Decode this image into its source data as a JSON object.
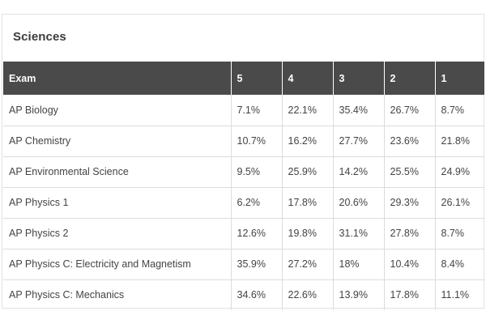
{
  "card": {
    "title": "Sciences"
  },
  "table": {
    "headers": [
      "Exam",
      "5",
      "4",
      "3",
      "2",
      "1"
    ],
    "rows": [
      [
        "AP Biology",
        "7.1%",
        "22.1%",
        "35.4%",
        "26.7%",
        "8.7%"
      ],
      [
        "AP Chemistry",
        "10.7%",
        "16.2%",
        "27.7%",
        "23.6%",
        "21.8%"
      ],
      [
        "AP Environmental Science",
        "9.5%",
        "25.9%",
        "14.2%",
        "25.5%",
        "24.9%"
      ],
      [
        "AP Physics 1",
        "6.2%",
        "17.8%",
        "20.6%",
        "29.3%",
        "26.1%"
      ],
      [
        "AP Physics 2",
        "12.6%",
        "19.8%",
        "31.1%",
        "27.8%",
        "8.7%"
      ],
      [
        "AP Physics C: Electricity and Magnetism",
        "35.9%",
        "27.2%",
        "18%",
        "10.4%",
        "8.4%"
      ],
      [
        "AP Physics C: Mechanics",
        "34.6%",
        "22.6%",
        "13.9%",
        "17.8%",
        "11.1%"
      ]
    ]
  },
  "colors": {
    "header_background": "#4a4a4a",
    "header_text": "#ffffff",
    "title_text": "#3c3c3c",
    "cell_text": "#444444",
    "grid_line": "#dcdcdc"
  }
}
